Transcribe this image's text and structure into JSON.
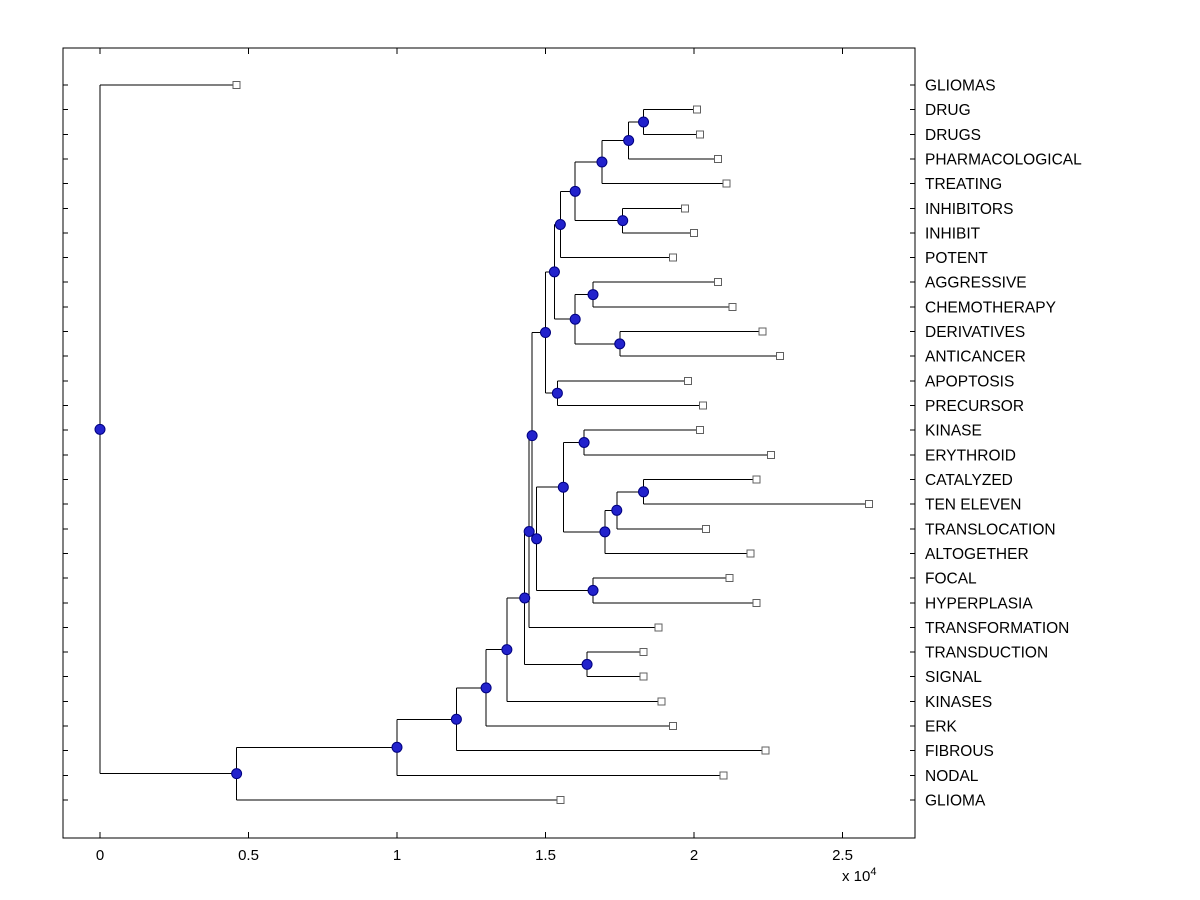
{
  "chart_data": {
    "type": "dendrogram",
    "orientation": "left-to-right",
    "x_axis": {
      "ticks": [
        0,
        0.5,
        1,
        1.5,
        2,
        2.5
      ],
      "tick_labels": [
        "0",
        "0.5",
        "1",
        "1.5",
        "2",
        "2.5"
      ],
      "multiplier": {
        "text": "x 10",
        "exponent": "4"
      },
      "unit_scale": 10000
    },
    "style": {
      "background": "#ffffff",
      "axis_color": "#000000",
      "branch_color": "#000000",
      "internal_node_fill": "#2222cc",
      "internal_node_stroke": "#000080",
      "leaf_marker_fill": "#ffffff",
      "leaf_marker_stroke": "#606060",
      "label_color": "#000000"
    },
    "leaf_order": [
      "GLIOMAS",
      "DRUG",
      "DRUGS",
      "PHARMACOLOGICAL",
      "TREATING",
      "INHIBITORS",
      "INHIBIT",
      "POTENT",
      "AGGRESSIVE",
      "CHEMOTHERAPY",
      "DERIVATIVES",
      "ANTICANCER",
      "APOPTOSIS",
      "PRECURSOR",
      "KINASE",
      "ERYTHROID",
      "CATALYZED",
      "TEN ELEVEN",
      "TRANSLOCATION",
      "ALTOGETHER",
      "FOCAL",
      "HYPERPLASIA",
      "TRANSFORMATION",
      "TRANSDUCTION",
      "SIGNAL",
      "KINASES",
      "ERK",
      "FIBROUS",
      "NODAL",
      "GLIOMA"
    ],
    "tree": {
      "x": 0,
      "children": [
        {
          "name": "GLIOMAS",
          "x": 0.46
        },
        {
          "x": 0.46,
          "children": [
            {
              "x": 1.0,
              "children": [
                {
                  "x": 1.2,
                  "children": [
                    {
                      "x": 1.3,
                      "children": [
                        {
                          "x": 1.37,
                          "children": [
                            {
                              "x": 1.43,
                              "children": [
                                {
                                  "x": 1.445,
                                  "children": [
                                    {
                                      "x": 1.455,
                                      "children": [
                                        {
                                          "x": 1.5,
                                          "children": [
                                            {
                                              "x": 1.53,
                                              "children": [
                                                {
                                                  "x": 1.55,
                                                  "children": [
                                                    {
                                                      "x": 1.6,
                                                      "children": [
                                                        {
                                                          "x": 1.69,
                                                          "children": [
                                                            {
                                                              "x": 1.78,
                                                              "children": [
                                                                {
                                                                  "x": 1.83,
                                                                  "children": [
                                                                    {
                                                                      "name": "DRUG",
                                                                      "x": 2.01
                                                                    },
                                                                    {
                                                                      "name": "DRUGS",
                                                                      "x": 2.02
                                                                    }
                                                                  ]
                                                                },
                                                                {
                                                                  "name": "PHARMACOLOGICAL",
                                                                  "x": 2.08
                                                                }
                                                              ]
                                                            },
                                                            {
                                                              "name": "TREATING",
                                                              "x": 2.11
                                                            }
                                                          ]
                                                        },
                                                        {
                                                          "x": 1.76,
                                                          "children": [
                                                            {
                                                              "name": "INHIBITORS",
                                                              "x": 1.97
                                                            },
                                                            {
                                                              "name": "INHIBIT",
                                                              "x": 2.0
                                                            }
                                                          ]
                                                        }
                                                      ]
                                                    },
                                                    {
                                                      "name": "POTENT",
                                                      "x": 1.93
                                                    }
                                                  ]
                                                },
                                                {
                                                  "x": 1.6,
                                                  "children": [
                                                    {
                                                      "x": 1.66,
                                                      "children": [
                                                        {
                                                          "name": "AGGRESSIVE",
                                                          "x": 2.08
                                                        },
                                                        {
                                                          "name": "CHEMOTHERAPY",
                                                          "x": 2.13
                                                        }
                                                      ]
                                                    },
                                                    {
                                                      "x": 1.75,
                                                      "children": [
                                                        {
                                                          "name": "DERIVATIVES",
                                                          "x": 2.23
                                                        },
                                                        {
                                                          "name": "ANTICANCER",
                                                          "x": 2.29
                                                        }
                                                      ]
                                                    }
                                                  ]
                                                }
                                              ]
                                            },
                                            {
                                              "x": 1.54,
                                              "children": [
                                                {
                                                  "name": "APOPTOSIS",
                                                  "x": 1.98
                                                },
                                                {
                                                  "name": "PRECURSOR",
                                                  "x": 2.03
                                                }
                                              ]
                                            }
                                          ]
                                        },
                                        {
                                          "x": 1.47,
                                          "children": [
                                            {
                                              "x": 1.56,
                                              "children": [
                                                {
                                                  "x": 1.63,
                                                  "children": [
                                                    {
                                                      "name": "KINASE",
                                                      "x": 2.02
                                                    },
                                                    {
                                                      "name": "ERYTHROID",
                                                      "x": 2.26
                                                    }
                                                  ]
                                                },
                                                {
                                                  "x": 1.7,
                                                  "children": [
                                                    {
                                                      "x": 1.74,
                                                      "children": [
                                                        {
                                                          "x": 1.83,
                                                          "children": [
                                                            {
                                                              "name": "CATALYZED",
                                                              "x": 2.21
                                                            },
                                                            {
                                                              "name": "TEN ELEVEN",
                                                              "x": 2.59
                                                            }
                                                          ]
                                                        },
                                                        {
                                                          "name": "TRANSLOCATION",
                                                          "x": 2.04
                                                        }
                                                      ]
                                                    },
                                                    {
                                                      "name": "ALTOGETHER",
                                                      "x": 2.19
                                                    }
                                                  ]
                                                }
                                              ]
                                            },
                                            {
                                              "x": 1.66,
                                              "children": [
                                                {
                                                  "name": "FOCAL",
                                                  "x": 2.12
                                                },
                                                {
                                                  "name": "HYPERPLASIA",
                                                  "x": 2.21
                                                }
                                              ]
                                            }
                                          ]
                                        }
                                      ]
                                    },
                                    {
                                      "name": "TRANSFORMATION",
                                      "x": 1.88
                                    }
                                  ]
                                },
                                {
                                  "x": 1.64,
                                  "children": [
                                    {
                                      "name": "TRANSDUCTION",
                                      "x": 1.83
                                    },
                                    {
                                      "name": "SIGNAL",
                                      "x": 1.83
                                    }
                                  ]
                                }
                              ]
                            },
                            {
                              "name": "KINASES",
                              "x": 1.89
                            }
                          ]
                        },
                        {
                          "name": "ERK",
                          "x": 1.93
                        }
                      ]
                    },
                    {
                      "name": "FIBROUS",
                      "x": 2.24
                    }
                  ]
                },
                {
                  "name": "NODAL",
                  "x": 2.1
                }
              ]
            },
            {
              "name": "GLIOMA",
              "x": 1.55
            }
          ]
        }
      ]
    }
  }
}
